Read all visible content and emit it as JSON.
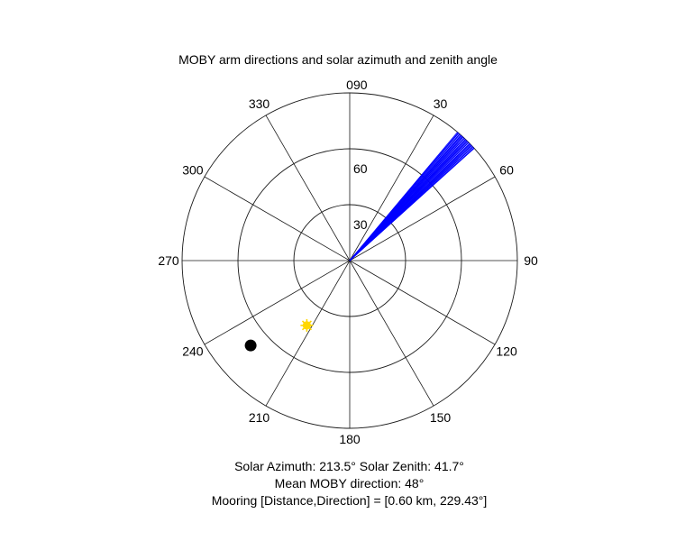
{
  "chart_data": {
    "type": "polar",
    "title": "MOBY arm directions and solar azimuth and zenith angle",
    "theta_zero": "top",
    "theta_direction": "clockwise",
    "theta_ticks": [
      0,
      30,
      60,
      90,
      120,
      150,
      180,
      210,
      240,
      270,
      300,
      330
    ],
    "r_max": 90,
    "r_ticks": [
      30,
      60,
      90
    ],
    "grid": true,
    "series": [
      {
        "kind": "rays",
        "color": "#0000ff",
        "azimuth_min_deg": 40,
        "azimuth_max_deg": 48,
        "count": 28
      },
      {
        "kind": "point",
        "marker": "filled-circle",
        "color": "#000000",
        "azimuth_deg": 229.43,
        "r": 70
      },
      {
        "kind": "point",
        "marker": "sun",
        "color": "#ffd700",
        "azimuth_deg": 213.5,
        "r": 41.7
      }
    ],
    "captions": [
      "Solar Azimuth: 213.5°    Solar Zenith: 41.7°",
      "Mean MOBY direction: 48°",
      "Mooring [Distance,Direction] = [0.60 km, 229.43°]"
    ]
  }
}
